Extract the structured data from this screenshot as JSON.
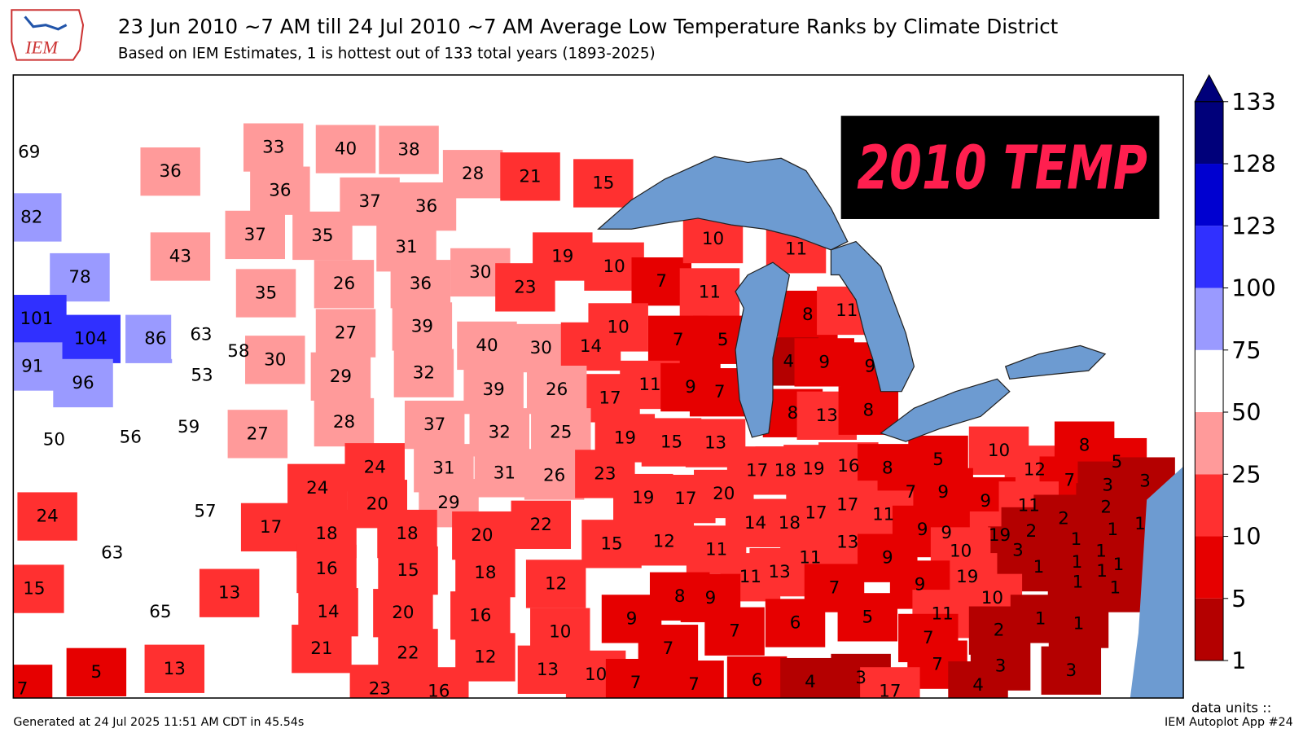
{
  "header": {
    "logo": "IEM",
    "title": "23 Jun 2010 ~7 AM till 24 Jul 2010 ~7 AM Average Low Temperature Ranks by Climate District",
    "subtitle": "Based on IEM Estimates, 1 is hottest out of 133 total years (1893-2025)"
  },
  "overlay": "2010 TEMP",
  "map": {
    "ranks": [
      69,
      36,
      82,
      43,
      78,
      33,
      40,
      38,
      36,
      37,
      36,
      37,
      35,
      31,
      28,
      21,
      15,
      30,
      19,
      23,
      10,
      7,
      11,
      10,
      11,
      35,
      26,
      36,
      27,
      39,
      101,
      104,
      86,
      63,
      91,
      96,
      53,
      58,
      30,
      29,
      32,
      40,
      30,
      14,
      10,
      7,
      5,
      8,
      11,
      4,
      9,
      9,
      11,
      9,
      7,
      17,
      39,
      26,
      8,
      13,
      8,
      50,
      56,
      59,
      27,
      28,
      37,
      32,
      25,
      19,
      15,
      13,
      24,
      24,
      31,
      31,
      26,
      23,
      20,
      29,
      17,
      18,
      19,
      16,
      8,
      5,
      10,
      12,
      8,
      5,
      7,
      3,
      3,
      7,
      9,
      9,
      11,
      2,
      2,
      1,
      19,
      17,
      20,
      17,
      17,
      11,
      14,
      18,
      57,
      24,
      17,
      18,
      18,
      20,
      22,
      63,
      15,
      12,
      11,
      13,
      9,
      9,
      19,
      2,
      1,
      1,
      3,
      10,
      9,
      1,
      1,
      1,
      1,
      1,
      1,
      1,
      16,
      15,
      18,
      12,
      15,
      13,
      11,
      13,
      11,
      19,
      9,
      10,
      7,
      8,
      9,
      65,
      14,
      20,
      16,
      10,
      9,
      7,
      6,
      5,
      11,
      7,
      2,
      1,
      1,
      21,
      22,
      12,
      5,
      13,
      7,
      13,
      10,
      7,
      7,
      6,
      4,
      3,
      7,
      3,
      3,
      4,
      17,
      23,
      16,
      7
    ]
  },
  "colorbar": {
    "levels": [
      1,
      5,
      10,
      25,
      50,
      75,
      100,
      123,
      128,
      133
    ],
    "colors": [
      "#b40000",
      "#e60000",
      "#ff3030",
      "#ff9a9a",
      "#ffffff",
      "#9a9aff",
      "#3030ff",
      "#0000d0",
      "#00007a"
    ]
  },
  "footer": {
    "generated": "Generated at 24 Jul 2025 11:51 AM CDT in 45.54s",
    "units": "data units ::",
    "app": "IEM Autoplot App #24"
  }
}
